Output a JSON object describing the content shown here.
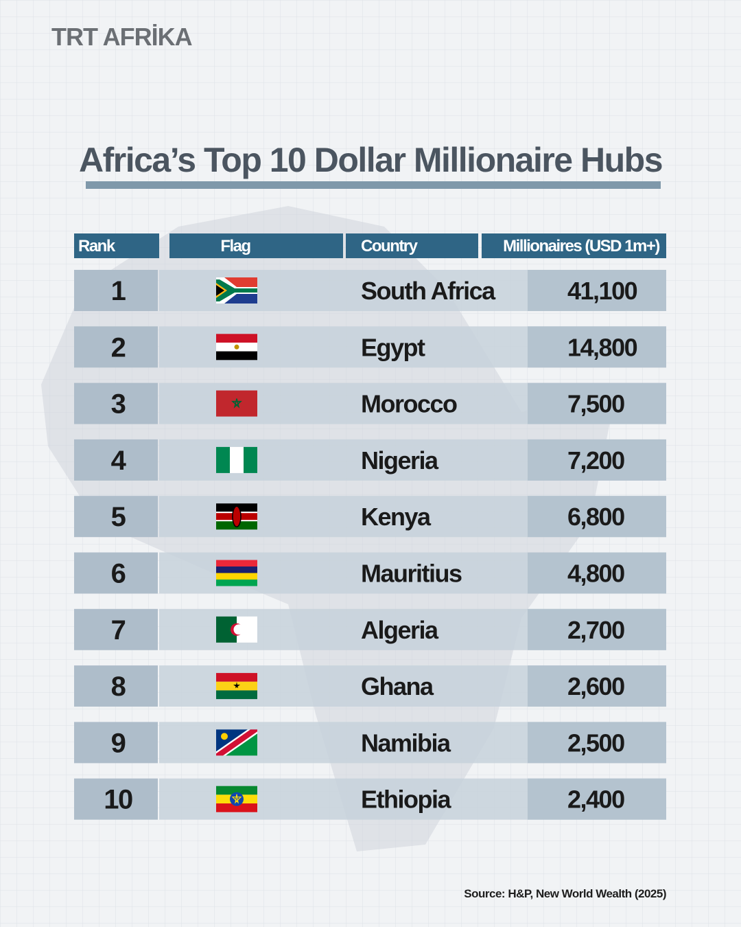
{
  "header": {
    "logo": "TRT AFRİKA",
    "title": "Africa’s Top 10 Dollar Millionaire Hubs"
  },
  "table": {
    "columns": [
      "Rank",
      "Flag",
      "Country",
      "Millionaires (USD 1m+)"
    ],
    "rows": [
      [
        1,
        "South Africa",
        "41,100"
      ],
      [
        2,
        "Egypt",
        "14,800"
      ],
      [
        3,
        "Morocco",
        "7,500"
      ],
      [
        4,
        "Nigeria",
        "7,200"
      ],
      [
        5,
        "Kenya",
        "6,800"
      ],
      [
        6,
        "Mauritius",
        "4,800"
      ],
      [
        7,
        "Algeria",
        "2,700"
      ],
      [
        8,
        "Ghana",
        "2,600"
      ],
      [
        9,
        "Namibia",
        "2,500"
      ],
      [
        10,
        "Ethiopia",
        "2,400"
      ]
    ]
  },
  "footer": {
    "source": "Source: H&P, New World Wealth (2025)"
  }
}
